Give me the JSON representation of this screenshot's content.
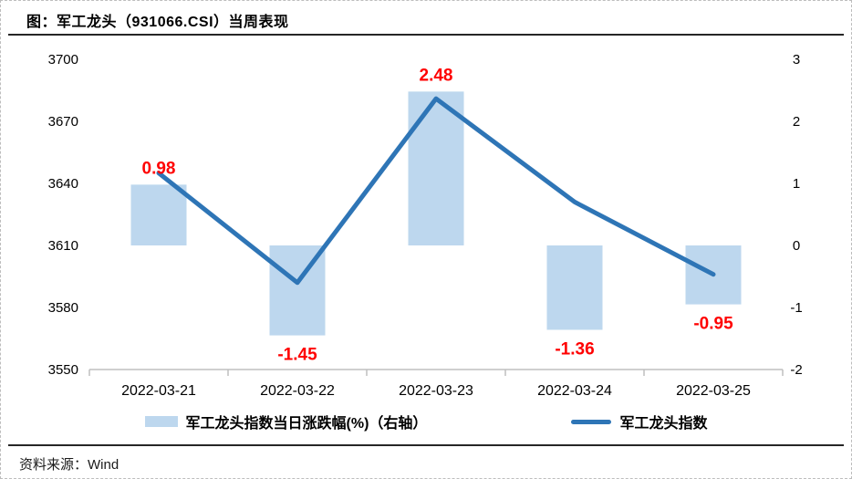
{
  "title": "图：军工龙头（931066.CSI）当周表现",
  "source": {
    "label": "资料来源：",
    "value": "Wind"
  },
  "legend": [
    {
      "label": "军工龙头指数当日涨跌幅(%)（右轴）",
      "series": "bar"
    },
    {
      "label": "军工龙头指数",
      "series": "line"
    }
  ],
  "colors": {
    "bar": "#BDD7EE",
    "line": "#2E75B6",
    "data_label": "#FF0000",
    "axis_line": "#BFBFBF",
    "text": "#000000"
  },
  "chart_data": {
    "type": "combo",
    "title": "图：军工龙头（931066.CSI）当周表现",
    "categories": [
      "2022-03-21",
      "2022-03-22",
      "2022-03-23",
      "2022-03-24",
      "2022-03-25"
    ],
    "series": [
      {
        "name": "军工龙头指数当日涨跌幅(%)（右轴）",
        "type": "bar",
        "axis": "right",
        "values": [
          0.98,
          -1.45,
          2.48,
          -1.36,
          -0.95
        ],
        "labels": [
          "0.98",
          "-1.45",
          "2.48",
          "-1.36",
          "-0.95"
        ]
      },
      {
        "name": "军工龙头指数",
        "type": "line",
        "axis": "left",
        "values": [
          3645,
          3592,
          3681,
          3631,
          3596
        ]
      }
    ],
    "left_axis": {
      "ticks": [
        3700,
        3670,
        3640,
        3610,
        3580,
        3550
      ],
      "min": 3550,
      "max": 3700
    },
    "right_axis": {
      "ticks": [
        3,
        2,
        1,
        0,
        -1,
        -2
      ],
      "min": -2,
      "max": 3
    },
    "grid": false,
    "legend_position": "bottom"
  }
}
